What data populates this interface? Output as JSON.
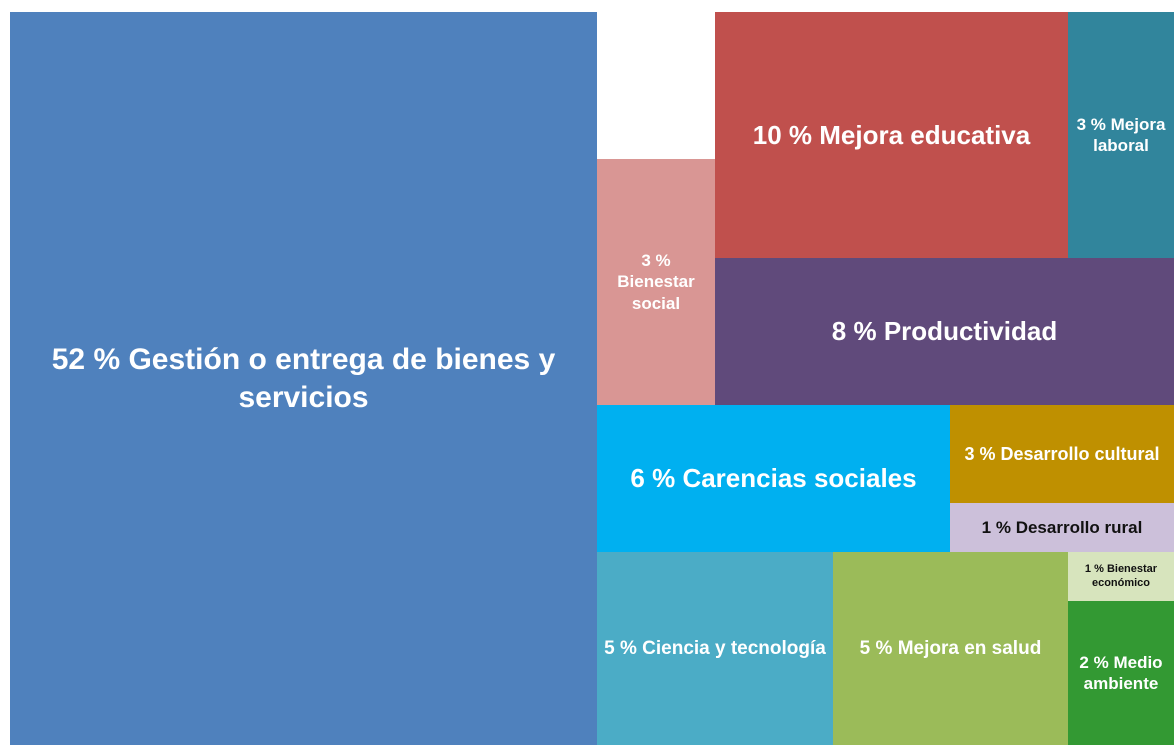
{
  "chart_data": {
    "type": "treemap",
    "categories": [
      "Gestión o entrega de bienes y servicios",
      "Mejora educativa",
      "Mejora laboral",
      "Bienestar social",
      "Productividad",
      "Carencias sociales",
      "Desarrollo cultural",
      "Desarrollo rural",
      "Ciencia y tecnología",
      "Mejora en salud",
      "Bienestar económico",
      "Medio ambiente"
    ],
    "values": [
      52,
      10,
      3,
      3,
      8,
      6,
      3,
      1,
      5,
      5,
      1,
      2
    ],
    "value_labels": [
      "52 %",
      "10 %",
      "3 %",
      "3 %",
      "8 %",
      "6 %",
      "3 %",
      "1 %",
      "5 %",
      "5 %",
      "1 %",
      "2 %"
    ],
    "colors": [
      "#4f81bd",
      "#c0504d",
      "#31859c",
      "#d99694",
      "#604a7b",
      "#00b0f0",
      "#bf9000",
      "#ccc0da",
      "#4bacc6",
      "#9bbb59",
      "#d7e4bd",
      "#339933"
    ]
  }
}
